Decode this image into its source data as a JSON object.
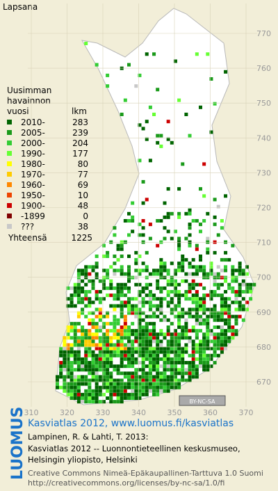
{
  "title": "Lapsana",
  "legend": {
    "header": [
      "Uusimman",
      "havainnon",
      "vuosi"
    ],
    "count_header": "lkm",
    "rows": [
      {
        "label": "2010-",
        "count": 283,
        "color": "#006400"
      },
      {
        "label": "2005-",
        "count": 239,
        "color": "#1a9a1a"
      },
      {
        "label": "2000-",
        "count": 204,
        "color": "#33cc33"
      },
      {
        "label": "1990-",
        "count": 177,
        "color": "#66ff33"
      },
      {
        "label": "1980-",
        "count": 80,
        "color": "#ffff00"
      },
      {
        "label": "1970-",
        "count": 77,
        "color": "#ffcc00"
      },
      {
        "label": "1960-",
        "count": 69,
        "color": "#ff8800"
      },
      {
        "label": "1950-",
        "count": 10,
        "color": "#ee4400"
      },
      {
        "label": "1900-",
        "count": 48,
        "color": "#cc0000"
      },
      {
        "label": "-1899",
        "count": 0,
        "color": "#800000"
      },
      {
        "label": "???",
        "count": 38,
        "color": "#c8c8c8"
      }
    ],
    "total_label": "Yhteensä",
    "total": 1225
  },
  "grid_x": [
    310,
    320,
    330,
    340,
    350,
    360,
    370
  ],
  "grid_y": [
    670,
    680,
    690,
    700,
    710,
    720,
    730,
    740,
    750,
    760,
    770
  ],
  "license_badge": "BY-NC-SA",
  "footer": {
    "logo": "LUOMUS",
    "link": "Kasviatlas 2012, www.luomus.fi/kasviatlas",
    "lines": [
      "Lampinen, R. & Lahti, T. 2013:",
      "Kasviatlas 2012 -- Luonnontieteellinen keskusmuseo,",
      "Helsingin yliopisto, Helsinki"
    ],
    "license": [
      "Creative Commons Nimeä-Epäkaupallinen-Tarttuva 1.0 Suomi",
      "http://creativecommons.org/licenses/by-nc-sa/1.0/fi"
    ]
  }
}
